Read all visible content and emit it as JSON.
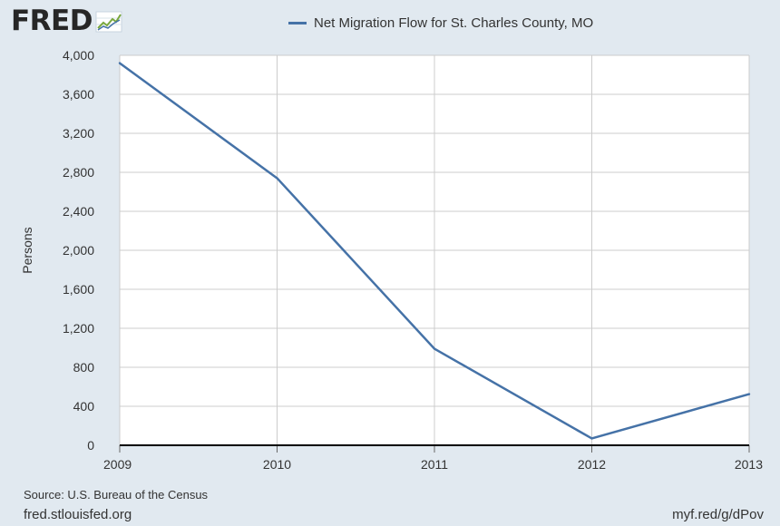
{
  "header": {
    "logo_text": "FRED",
    "legend_label": "Net Migration Flow for St. Charles County, MO"
  },
  "footer": {
    "source": "Source: U.S. Bureau of the Census",
    "site": "fred.stlouisfed.org",
    "short_url": "myf.red/g/dPov"
  },
  "colors": {
    "series": "#4572a7",
    "background": "#e1e9f0",
    "plot_background": "#ffffff",
    "grid": "#cccccc",
    "logo_graph": "#7aa83e"
  },
  "chart_data": {
    "type": "line",
    "title": "",
    "xlabel": "",
    "ylabel": "Persons",
    "x": [
      "2009",
      "2010",
      "2011",
      "2012",
      "2013"
    ],
    "series": [
      {
        "name": "Net Migration Flow for St. Charles County, MO",
        "values": [
          3920,
          2740,
          990,
          70,
          525
        ]
      }
    ],
    "ylim": [
      0,
      4000
    ],
    "yticks": [
      "0",
      "400",
      "800",
      "1,200",
      "1,600",
      "2,000",
      "2,400",
      "2,800",
      "3,200",
      "3,600",
      "4,000"
    ],
    "grid": true,
    "legend_position": "top-center"
  }
}
